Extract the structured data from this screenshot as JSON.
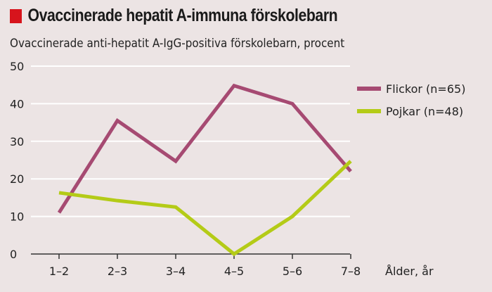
{
  "chart_data": {
    "type": "line",
    "title": "Ovaccinerade hepatit A-immuna förskolebarn",
    "subtitle": "Ovaccinerade anti-hepatit A-IgG-positiva förskolebarn, procent",
    "xlabel": "Ålder, år",
    "ylabel": "",
    "categories": [
      "1–2",
      "2–3",
      "3–4",
      "4–5",
      "5–6",
      "7–8"
    ],
    "yticks": [
      "0",
      "10",
      "20",
      "30",
      "40",
      "50"
    ],
    "ylim": [
      0,
      50
    ],
    "grid": true,
    "legend_position": "right",
    "series": [
      {
        "name": "Flickor (n=65)",
        "color": "#a64a72",
        "values": [
          11,
          35.5,
          24.7,
          44.8,
          40,
          22
        ]
      },
      {
        "name": "Pojkar (n=48)",
        "color": "#b4cb17",
        "values": [
          16.3,
          14.2,
          12.5,
          0,
          10,
          24.7
        ]
      }
    ],
    "accent_color": "#d7141c"
  }
}
